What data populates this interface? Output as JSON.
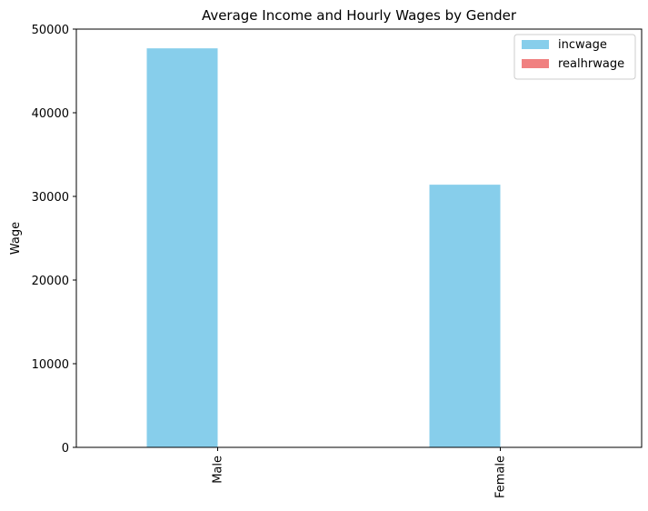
{
  "chart_data": {
    "type": "bar",
    "title": "Average Income and Hourly Wages by Gender",
    "xlabel": "",
    "ylabel": "Wage",
    "categories": [
      "Male",
      "Female"
    ],
    "series": [
      {
        "name": "incwage",
        "values": [
          47700,
          31400
        ],
        "color": "#87CEEB"
      },
      {
        "name": "realhrwage",
        "values": [
          30,
          25
        ],
        "color": "#F08080"
      }
    ],
    "ylim": [
      0,
      50000
    ],
    "yticks": [
      0,
      10000,
      20000,
      30000,
      40000,
      50000
    ],
    "grid": false,
    "legend_position": "top-right"
  }
}
